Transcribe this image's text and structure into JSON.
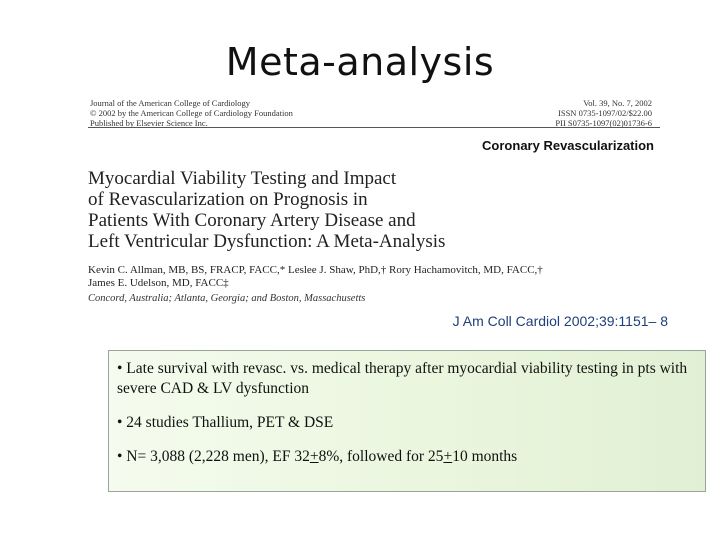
{
  "slide": {
    "title": "Meta-analysis"
  },
  "article": {
    "journal_lines": [
      "Journal of the American College of Cardiology",
      "© 2002 by the American College of Cardiology Foundation",
      "Published by Elsevier Science Inc."
    ],
    "issn_lines": [
      "Vol. 39, No. 7, 2002",
      "ISSN 0735-1097/02/$22.00",
      "PII S0735-1097(02)01736-6"
    ],
    "section": "Coronary Revascularization",
    "title_lines": [
      "Myocardial Viability Testing and Impact",
      "of Revascularization on Prognosis in",
      "Patients With Coronary Artery Disease and",
      "Left Ventricular Dysfunction: A Meta-Analysis"
    ],
    "author_lines": [
      "Kevin C. Allman, MB, BS, FRACP, FACC,* Leslee J. Shaw, PhD,† Rory Hachamovitch, MD, FACC,†",
      "James E. Udelson, MD, FACC‡"
    ],
    "affiliation": "Concord, Australia; Atlanta, Georgia; and Boston, Massachusetts"
  },
  "citation": {
    "journal": "J Am Coll Cardiol",
    "details": " 2002;39:1151– 8"
  },
  "summary": {
    "bullet1": "• Late survival with revasc. vs. medical therapy after myocardial viability testing in pts with severe CAD & LV dysfunction",
    "bullet2": "• 24 studies Thallium, PET & DSE",
    "bullet3_prefix": "• N= 3,088 (2,228 men), EF 32",
    "pm1": "+",
    "bullet3_middle": "8%, followed for 25",
    "pm2": "+",
    "bullet3_suffix": "10 months"
  }
}
